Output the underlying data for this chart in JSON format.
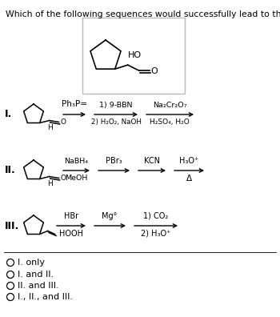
{
  "title": "Which of the following sequences would successfully lead to the shown product?",
  "title_fontsize": 8.0,
  "background_color": "#ffffff",
  "text_color": "#000000",
  "box_color": "#cccccc",
  "choices": [
    "I. only",
    "I. and II.",
    "II. and III.",
    "I., II., and III."
  ]
}
